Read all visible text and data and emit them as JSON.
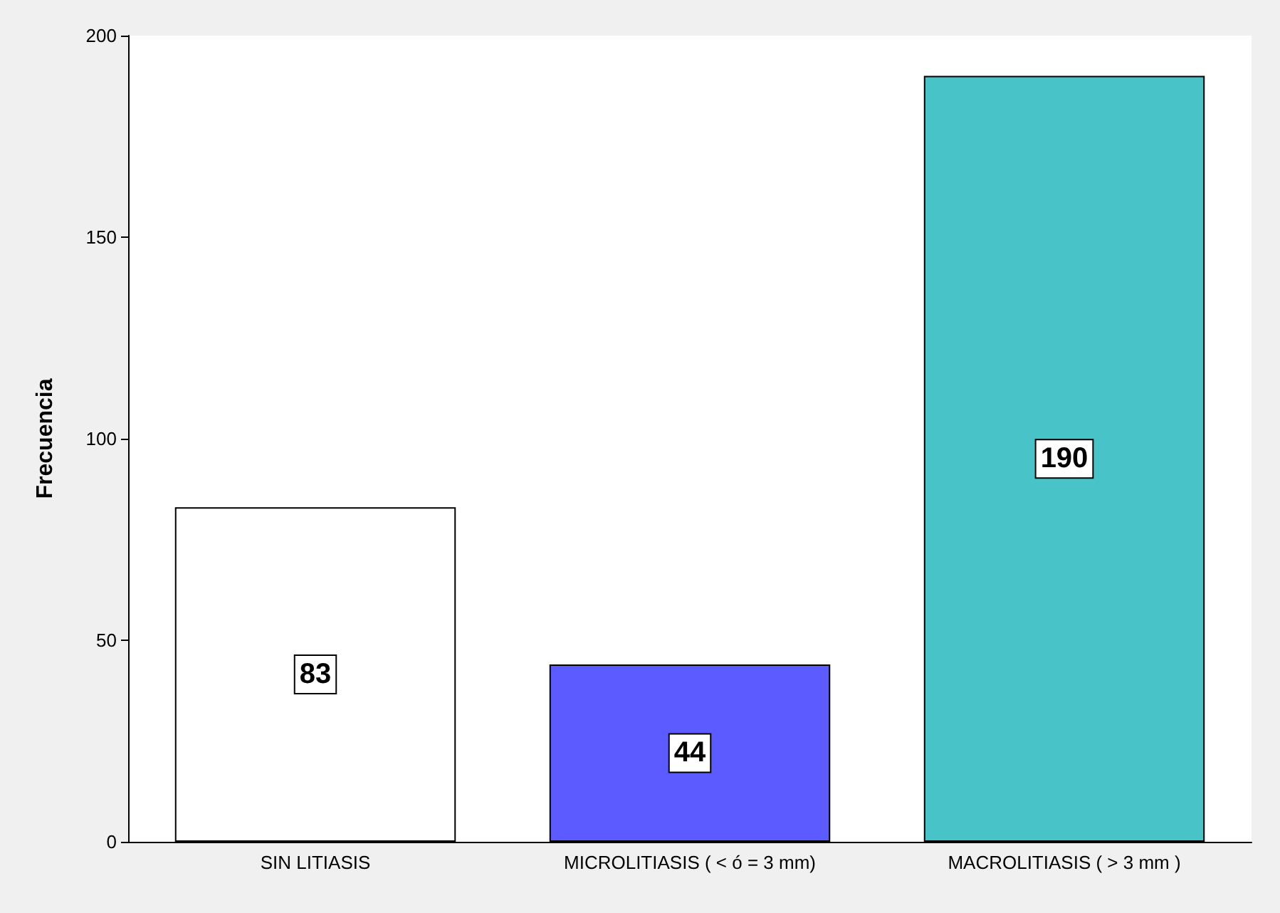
{
  "chart_data": {
    "type": "bar",
    "ylabel": "Frecuencia",
    "categories": [
      "SIN LITIASIS",
      "MICROLITIASIS ( < ó = 3 mm)",
      "MACROLITIASIS ( > 3 mm )"
    ],
    "values": [
      83,
      44,
      190
    ],
    "colors": [
      "#ffffff",
      "#5b5bff",
      "#48c4c8"
    ],
    "ylim": [
      0,
      200
    ],
    "yticks": [
      0,
      50,
      100,
      150,
      200
    ],
    "grid": false,
    "data_labels": true
  }
}
